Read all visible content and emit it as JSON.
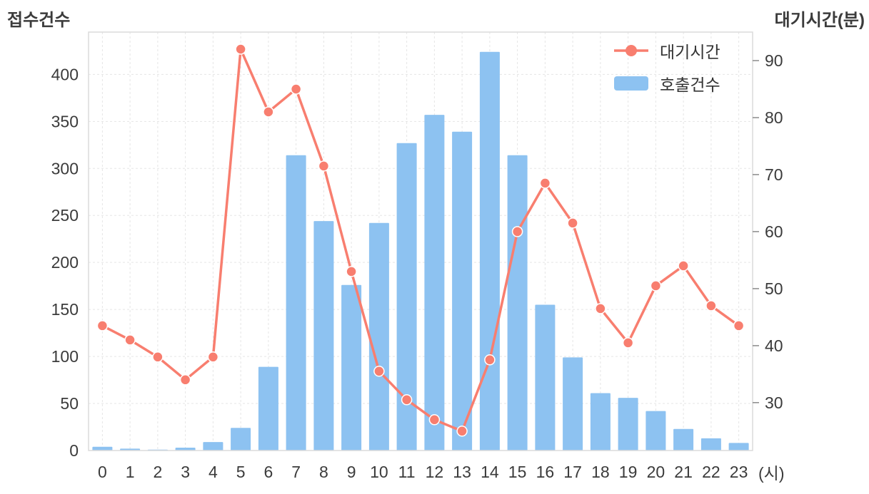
{
  "colors": {
    "bar": "#8DC2F1",
    "line": "#F87E6F",
    "grid": "#E5E5E5",
    "border": "#DBDBDB",
    "tick": "#8A8A8A",
    "text": "#3B3B3B"
  },
  "chart_data": {
    "type": "bar",
    "title": "",
    "xlabel": "(시)",
    "ylabel_left": "접수건수",
    "ylabel_right": "대기시간(분)",
    "categories": [
      "0",
      "1",
      "2",
      "3",
      "4",
      "5",
      "6",
      "7",
      "8",
      "9",
      "10",
      "11",
      "12",
      "13",
      "14",
      "15",
      "16",
      "17",
      "18",
      "19",
      "20",
      "21",
      "22",
      "23"
    ],
    "series": [
      {
        "name": "대기시간",
        "type": "line",
        "axis": "right",
        "values": [
          43.5,
          41,
          38,
          34,
          38,
          92,
          81,
          85,
          71.5,
          53,
          35.5,
          30.5,
          27,
          25,
          37.5,
          60,
          68.5,
          61.5,
          46.5,
          40.5,
          50.5,
          54,
          47,
          43.5
        ]
      },
      {
        "name": "호출건수",
        "type": "bar",
        "axis": "left",
        "values": [
          4,
          2,
          1,
          3,
          9,
          24,
          89,
          314,
          244,
          176,
          242,
          327,
          357,
          339,
          424,
          314,
          155,
          99,
          61,
          56,
          42,
          23,
          13,
          8
        ]
      }
    ],
    "left_ticks": [
      0,
      50,
      100,
      150,
      200,
      250,
      300,
      350,
      400
    ],
    "right_ticks": [
      30,
      40,
      50,
      60,
      70,
      80,
      90
    ],
    "ylim_left": [
      0,
      445
    ],
    "ylim_right": [
      21.6,
      95
    ],
    "grid": true,
    "legend_position": "top-right-inside"
  }
}
